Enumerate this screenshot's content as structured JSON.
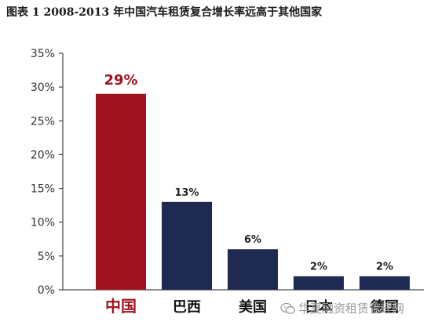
{
  "header": {
    "title": "图表 1 2008-2013 年中国汽车租赁复合增长率远高于其他国家"
  },
  "watermark": {
    "text": "华夏融资租赁管理网",
    "icon": "wechat-icon"
  },
  "colors": {
    "highlight": "#a01420",
    "bar": "#1e2a52",
    "axis": "#444444",
    "tick_label": "#333333"
  },
  "chart_data": {
    "type": "bar",
    "title": "图表 1 2008-2013 年中国汽车租赁复合增长率远高于其他国家",
    "xlabel": "",
    "ylabel": "",
    "categories": [
      "中国",
      "巴西",
      "美国",
      "日本",
      "德国"
    ],
    "values": [
      29,
      13,
      6,
      2,
      2
    ],
    "data_labels": [
      "29%",
      "13%",
      "6%",
      "2%",
      "2%"
    ],
    "highlight_index": 0,
    "ylim": [
      0,
      35
    ],
    "yticks": [
      "0%",
      "5%",
      "10%",
      "15%",
      "20%",
      "25%",
      "30%",
      "35%"
    ],
    "grid": false,
    "legend": "none"
  }
}
